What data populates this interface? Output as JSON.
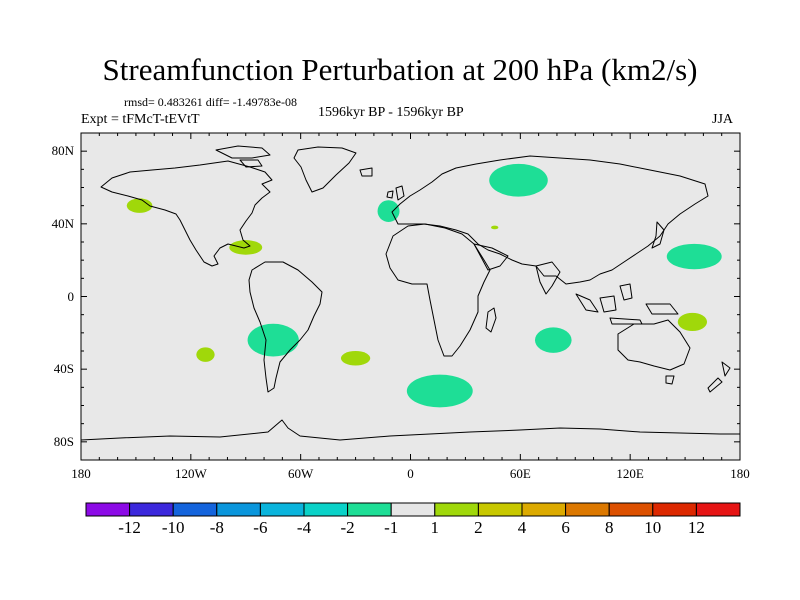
{
  "title": "Streamfunction Perturbation at 200 hPa (km2/s)",
  "stats": "rmsd= 0.483261  diff= -1.49783e-08",
  "experiment": "Expt = tFMcT-tEVtT",
  "period": "1596kyr BP - 1596kyr BP",
  "season": "JJA",
  "chart_data": {
    "type": "map",
    "projection": "cylindrical equidistant",
    "xlim": [
      -180,
      180
    ],
    "ylim": [
      -90,
      90
    ],
    "x_ticks": [
      {
        "value": -180,
        "label": "180"
      },
      {
        "value": -120,
        "label": "120W"
      },
      {
        "value": -60,
        "label": "60W"
      },
      {
        "value": 0,
        "label": "0"
      },
      {
        "value": 60,
        "label": "60E"
      },
      {
        "value": 120,
        "label": "120E"
      },
      {
        "value": 180,
        "label": "180"
      }
    ],
    "y_ticks": [
      {
        "value": 80,
        "label": "80N"
      },
      {
        "value": 40,
        "label": "40N"
      },
      {
        "value": 0,
        "label": "0"
      },
      {
        "value": -40,
        "label": "40S"
      },
      {
        "value": -80,
        "label": "80S"
      }
    ],
    "background_color": "#e8e8e8",
    "anomalies": [
      {
        "name": "north-pacific-positive",
        "lon": -148,
        "lat": 50,
        "rlon": 7,
        "rlat": 4,
        "class": "1 to 2",
        "color": "#a0d80a"
      },
      {
        "name": "gulf-of-mexico-positive",
        "lon": -90,
        "lat": 27,
        "rlon": 9,
        "rlat": 4,
        "class": "1 to 2",
        "color": "#a0d80a"
      },
      {
        "name": "south-pacific-positive",
        "lon": -112,
        "lat": -32,
        "rlon": 5,
        "rlat": 4,
        "class": "1 to 2",
        "color": "#a0d80a"
      },
      {
        "name": "south-atlantic-positive",
        "lon": -30,
        "lat": -34,
        "rlon": 8,
        "rlat": 4,
        "class": "1 to 2",
        "color": "#a0d80a"
      },
      {
        "name": "australia-positive",
        "lon": 154,
        "lat": -14,
        "rlon": 8,
        "rlat": 5,
        "class": "1 to 2",
        "color": "#a0d80a"
      },
      {
        "name": "middle-east-positive",
        "lon": 46,
        "lat": 38,
        "rlon": 2,
        "rlat": 1,
        "class": "1 to 2",
        "color": "#a0d80a"
      },
      {
        "name": "europe-negative",
        "lon": -12,
        "lat": 47,
        "rlon": 6,
        "rlat": 6,
        "class": "-2 to -1",
        "color": "#1ede96"
      },
      {
        "name": "siberia-negative",
        "lon": 59,
        "lat": 64,
        "rlon": 16,
        "rlat": 9,
        "class": "-2 to -1",
        "color": "#1ede96"
      },
      {
        "name": "north-pacific-east-asia-negative",
        "lon": 155,
        "lat": 22,
        "rlon": 15,
        "rlat": 7,
        "class": "-2 to -1",
        "color": "#1ede96"
      },
      {
        "name": "south-america-negative",
        "lon": -75,
        "lat": -24,
        "rlon": 14,
        "rlat": 9,
        "class": "-2 to -1",
        "color": "#1ede96"
      },
      {
        "name": "southern-ocean-negative",
        "lon": 16,
        "lat": -52,
        "rlon": 18,
        "rlat": 9,
        "class": "-2 to -1",
        "color": "#1ede96"
      },
      {
        "name": "indian-ocean-negative",
        "lon": 78,
        "lat": -24,
        "rlon": 10,
        "rlat": 7,
        "class": "-2 to -1",
        "color": "#1ede96"
      }
    ],
    "colorbar": {
      "levels": [
        "-12",
        "-10",
        "-8",
        "-6",
        "-4",
        "-2",
        "-1",
        "1",
        "2",
        "4",
        "6",
        "8",
        "10",
        "12"
      ],
      "colors": [
        "#8c0ae6",
        "#3c28dc",
        "#1464dc",
        "#0a96dc",
        "#0ab4dc",
        "#0ad2c8",
        "#1ede96",
        "#e6e6e6",
        "#a0d80a",
        "#c8c800",
        "#dcaa00",
        "#dc7800",
        "#dc5000",
        "#dc2800",
        "#e61414"
      ]
    }
  }
}
